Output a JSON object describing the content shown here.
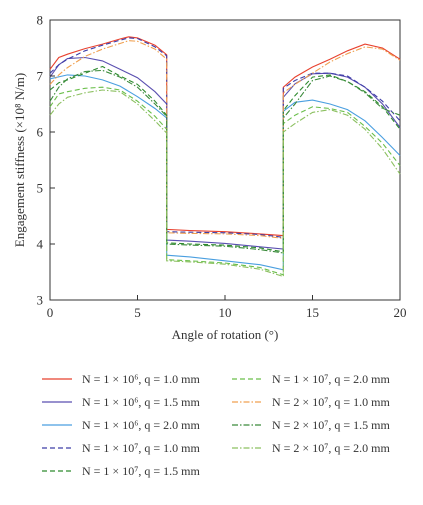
{
  "chart_data": {
    "type": "line",
    "title": "",
    "xlabel": "Angle of rotation (°)",
    "ylabel": "Engagement stiffness (×10⁸ N/m)",
    "xlim": [
      0,
      20
    ],
    "ylim": [
      3,
      8
    ],
    "xticks": [
      0,
      5,
      10,
      15,
      20
    ],
    "yticks": [
      3,
      4,
      5,
      6,
      7,
      8
    ],
    "grid": false,
    "legend_position": "bottom, two columns",
    "series": [
      {
        "name": "N = 1 × 10⁶, q = 1.0 mm",
        "color": "#e8412e",
        "dash": "solid",
        "x": [
          0,
          0.5,
          1,
          2,
          3,
          4,
          4.5,
          5,
          6,
          6.67,
          6.67,
          8,
          10,
          12,
          13.33,
          13.33,
          14,
          15,
          16,
          17,
          18,
          19,
          20
        ],
        "y": [
          7.12,
          7.33,
          7.39,
          7.49,
          7.57,
          7.66,
          7.7,
          7.68,
          7.55,
          7.38,
          4.26,
          4.24,
          4.22,
          4.18,
          4.15,
          6.8,
          6.98,
          7.16,
          7.3,
          7.45,
          7.57,
          7.5,
          7.3
        ]
      },
      {
        "name": "N = 1 × 10⁶, q = 1.5 mm",
        "color": "#5a4fb0",
        "dash": "solid",
        "x": [
          0,
          0.5,
          1,
          2,
          3,
          4,
          5,
          6,
          6.67,
          6.67,
          8,
          10,
          12,
          13.33,
          13.33,
          14,
          15,
          16,
          17,
          18,
          19,
          20
        ],
        "y": [
          6.98,
          7.2,
          7.31,
          7.33,
          7.27,
          7.12,
          6.97,
          6.72,
          6.5,
          4.07,
          4.05,
          4.01,
          3.95,
          3.91,
          6.62,
          6.86,
          7.04,
          7.05,
          6.98,
          6.8,
          6.5,
          6.08
        ]
      },
      {
        "name": "N = 1 × 10⁶, q = 2.0 mm",
        "color": "#4a9fe0",
        "dash": "solid",
        "x": [
          0,
          1,
          2,
          3,
          4,
          5,
          6,
          6.67,
          6.67,
          8,
          10,
          12,
          13.33,
          13.33,
          14,
          15,
          16,
          17,
          18,
          19,
          20
        ],
        "y": [
          6.95,
          7.02,
          7.0,
          6.93,
          6.82,
          6.63,
          6.42,
          6.25,
          3.8,
          3.77,
          3.7,
          3.63,
          3.54,
          6.37,
          6.53,
          6.57,
          6.5,
          6.4,
          6.2,
          5.9,
          5.58
        ]
      },
      {
        "name": "N = 1 × 10⁷, q = 1.0 mm",
        "color": "#3e3da8",
        "dash": "dashed",
        "x": [
          0,
          0.5,
          1,
          2,
          3,
          4,
          4.5,
          5,
          6,
          6.67,
          6.67,
          8,
          10,
          12,
          13.33,
          13.33,
          14,
          15,
          16,
          17,
          18,
          19,
          20
        ],
        "y": [
          7.05,
          7.2,
          7.3,
          7.45,
          7.55,
          7.64,
          7.68,
          7.67,
          7.52,
          7.36,
          4.22,
          4.21,
          4.2,
          4.17,
          4.12,
          6.78,
          6.92,
          7.05,
          7.05,
          7.0,
          6.8,
          6.55,
          6.2
        ]
      },
      {
        "name": "N = 1 × 10⁷, q = 1.5 mm",
        "color": "#2e8b2e",
        "dash": "dashed",
        "x": [
          0,
          0.5,
          1,
          2,
          3,
          4,
          5,
          6,
          6.67,
          6.67,
          8,
          10,
          12,
          13.33,
          13.33,
          14,
          15,
          16,
          17,
          18,
          19,
          20
        ],
        "y": [
          6.75,
          6.88,
          6.93,
          7.05,
          7.17,
          7.0,
          6.85,
          6.55,
          6.3,
          4.02,
          4.0,
          3.98,
          3.93,
          3.86,
          6.38,
          6.65,
          6.98,
          7.02,
          6.9,
          6.72,
          6.45,
          6.05
        ]
      },
      {
        "name": "N = 1 × 10⁷, q = 2.0 mm",
        "color": "#6abf4a",
        "dash": "dashed",
        "x": [
          0,
          0.5,
          1,
          2,
          3,
          4,
          5,
          6,
          6.67,
          6.67,
          8,
          10,
          12,
          13.33,
          13.33,
          14,
          15,
          16,
          17,
          18,
          19,
          20
        ],
        "y": [
          6.45,
          6.68,
          6.72,
          6.78,
          6.8,
          6.75,
          6.55,
          6.28,
          6.05,
          3.72,
          3.7,
          3.66,
          3.58,
          3.45,
          6.15,
          6.3,
          6.45,
          6.42,
          6.35,
          6.1,
          5.8,
          5.4
        ]
      },
      {
        "name": "N = 2 × 10⁷, q = 1.0 mm",
        "color": "#f0a050",
        "dash": "dashdot",
        "x": [
          0,
          0.5,
          1,
          2,
          3,
          4,
          4.5,
          5,
          6,
          6.67,
          6.67,
          8,
          10,
          12,
          13.33,
          13.33,
          14,
          15,
          16,
          17,
          18,
          19,
          20
        ],
        "y": [
          6.85,
          7.02,
          7.15,
          7.35,
          7.48,
          7.58,
          7.63,
          7.62,
          7.48,
          7.3,
          4.2,
          4.19,
          4.18,
          4.15,
          4.1,
          6.7,
          6.85,
          7.05,
          7.25,
          7.4,
          7.52,
          7.48,
          7.28
        ]
      },
      {
        "name": "N = 2 × 10⁷, q = 1.5 mm",
        "color": "#3a8a3a",
        "dash": "dashdot",
        "x": [
          0,
          0.5,
          1,
          2,
          3,
          4,
          5,
          6,
          6.67,
          6.67,
          8,
          10,
          12,
          13.33,
          13.33,
          14,
          15,
          16,
          17,
          18,
          19,
          20
        ],
        "y": [
          6.55,
          6.8,
          6.95,
          7.08,
          7.1,
          6.98,
          6.8,
          6.5,
          6.28,
          4.0,
          3.98,
          3.96,
          3.9,
          3.84,
          6.25,
          6.5,
          6.92,
          7.0,
          6.9,
          6.7,
          6.42,
          6.3
        ]
      },
      {
        "name": "N = 2 × 10⁷, q = 2.0 mm",
        "color": "#8cc060",
        "dash": "dashdot",
        "x": [
          0,
          0.5,
          1,
          2,
          3,
          4,
          5,
          6,
          6.67,
          6.67,
          8,
          10,
          12,
          13.33,
          13.33,
          14,
          15,
          16,
          17,
          18,
          19,
          20
        ],
        "y": [
          6.3,
          6.5,
          6.62,
          6.7,
          6.75,
          6.72,
          6.5,
          6.2,
          5.98,
          3.7,
          3.68,
          3.64,
          3.55,
          3.42,
          6.0,
          6.15,
          6.35,
          6.4,
          6.3,
          6.05,
          5.7,
          5.25
        ]
      }
    ]
  }
}
